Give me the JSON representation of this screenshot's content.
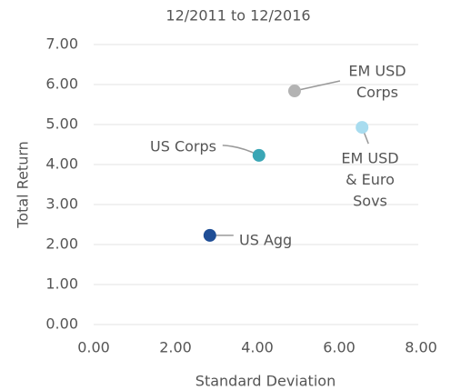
{
  "chart_data": {
    "type": "scatter",
    "title": "12/2011 to 12/2016",
    "x_label": "Standard Deviation",
    "y_label": "Total Return",
    "points": [
      {
        "label": [
          "US Agg"
        ],
        "x": 2.84,
        "y": 2.23,
        "color": "#1f4e96"
      },
      {
        "label": [
          "US Corps"
        ],
        "x": 4.04,
        "y": 4.23,
        "color": "#3aa6b5"
      },
      {
        "label": [
          "EM USD",
          "Corps"
        ],
        "x": 4.91,
        "y": 5.84,
        "color": "#b3b3b3"
      },
      {
        "label": [
          "EM USD",
          "& Euro",
          "Sovs"
        ],
        "x": 6.56,
        "y": 4.93,
        "color": "#a8dcef"
      }
    ],
    "xlim": [
      0,
      8
    ],
    "ylim": [
      0,
      7
    ],
    "xticks": [
      {
        "value": 0,
        "label": "0.00"
      },
      {
        "value": 2,
        "label": "2.00"
      },
      {
        "value": 4,
        "label": "4.00"
      },
      {
        "value": 6,
        "label": "6.00"
      },
      {
        "value": 8,
        "label": "8.00"
      }
    ],
    "yticks": [
      {
        "value": 0,
        "label": "0.00"
      },
      {
        "value": 1,
        "label": "1.00"
      },
      {
        "value": 2,
        "label": "2.00"
      },
      {
        "value": 3,
        "label": "3.00"
      },
      {
        "value": 4,
        "label": "4.00"
      },
      {
        "value": 5,
        "label": "5.00"
      },
      {
        "value": 6,
        "label": "6.00"
      },
      {
        "value": 7,
        "label": "7.00"
      }
    ],
    "grid": true
  }
}
